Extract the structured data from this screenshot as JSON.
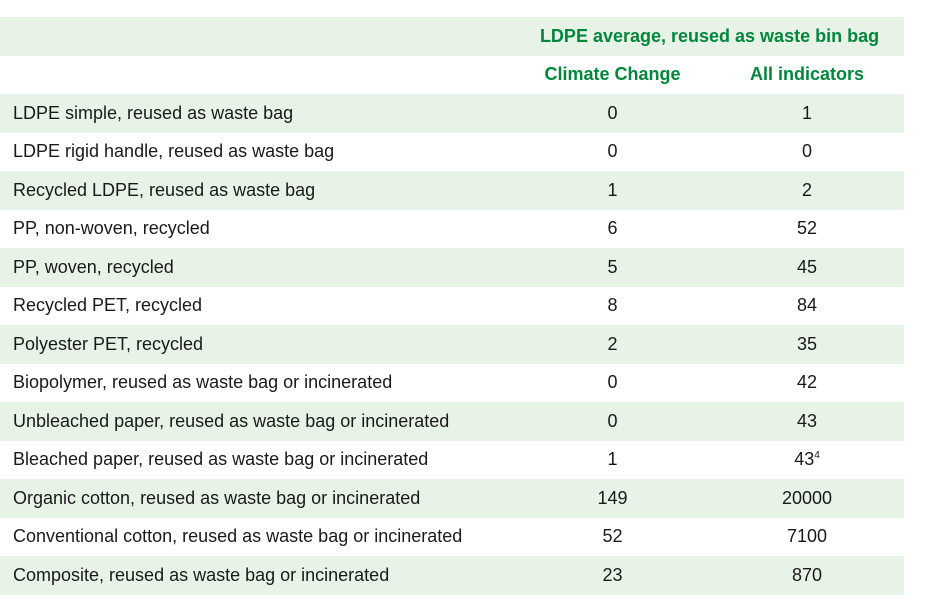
{
  "table": {
    "group_header": "LDPE average, reused as waste bin bag",
    "columns": [
      "Climate Change",
      "All indicators"
    ],
    "rows": [
      {
        "label": "LDPE simple, reused as waste bag",
        "climate_change": "0",
        "all_indicators": "1",
        "footnote": ""
      },
      {
        "label": "LDPE rigid handle, reused as waste bag",
        "climate_change": "0",
        "all_indicators": "0",
        "footnote": ""
      },
      {
        "label": "Recycled LDPE, reused as waste bag",
        "climate_change": "1",
        "all_indicators": "2",
        "footnote": ""
      },
      {
        "label": "PP, non-woven, recycled",
        "climate_change": "6",
        "all_indicators": "52",
        "footnote": ""
      },
      {
        "label": "PP, woven, recycled",
        "climate_change": "5",
        "all_indicators": "45",
        "footnote": ""
      },
      {
        "label": "Recycled PET, recycled",
        "climate_change": "8",
        "all_indicators": "84",
        "footnote": ""
      },
      {
        "label": "Polyester PET, recycled",
        "climate_change": "2",
        "all_indicators": "35",
        "footnote": ""
      },
      {
        "label": "Biopolymer, reused as waste bag or incinerated",
        "climate_change": "0",
        "all_indicators": "42",
        "footnote": ""
      },
      {
        "label": "Unbleached paper, reused as waste bag or incinerated",
        "climate_change": "0",
        "all_indicators": "43",
        "footnote": ""
      },
      {
        "label": "Bleached paper, reused as waste bag or incinerated",
        "climate_change": "1",
        "all_indicators": "43",
        "footnote": "4"
      },
      {
        "label": "Organic cotton, reused as waste bag or incinerated",
        "climate_change": "149",
        "all_indicators": "20000",
        "footnote": ""
      },
      {
        "label": "Conventional cotton, reused as waste bag or incinerated",
        "climate_change": "52",
        "all_indicators": "7100",
        "footnote": ""
      },
      {
        "label": "Composite, reused as waste bag or incinerated",
        "climate_change": "23",
        "all_indicators": "870",
        "footnote": ""
      }
    ]
  },
  "colors": {
    "header_text": "#00863c",
    "row_shade": "#e6f3e6"
  }
}
